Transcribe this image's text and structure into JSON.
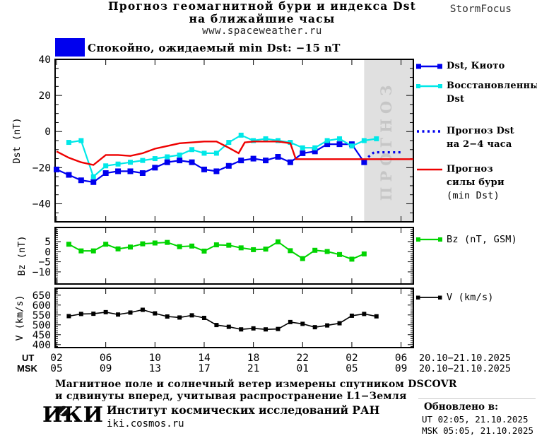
{
  "header": {
    "title_line1": "Прогноз геомагнитной бури и индекса Dst",
    "title_line2": "на ближайшие часы",
    "site": "www.spaceweather.ru",
    "brand": "StormFocus"
  },
  "status": {
    "label": "Спокойно, ожидаемый min Dst: −15 nT"
  },
  "watermark": "ПРОГНОЗ",
  "colors": {
    "kyoto_blue": "#0000ee",
    "restored_cyan": "#00e8e8",
    "forecast_blue": "#0000ee",
    "storm_red": "#ee0000",
    "bz_green": "#00d400",
    "v_black": "#000000",
    "forecast_region": "#e0e0e0",
    "watermark_gray": "#c6c6c6",
    "status_blue": "#0000ee"
  },
  "legend": {
    "dst_kyoto": "Dst, Киото",
    "restored_line1": "Восстановленный",
    "restored_line2": "Dst",
    "forecast_line1": "Прогноз Dst",
    "forecast_line2": "на 2−4 часа",
    "storm_line1": "Прогноз",
    "storm_line2": "силы бури",
    "storm_line3": "(min Dst)",
    "bz": "Bz (nT, GSM)",
    "v": "V (km/s)"
  },
  "xaxis": {
    "ut_label": "UT",
    "msk_label": "MSK",
    "ut_ticks": [
      "02",
      "06",
      "10",
      "14",
      "18",
      "22",
      "02",
      "06"
    ],
    "msk_ticks": [
      "05",
      "09",
      "13",
      "17",
      "21",
      "01",
      "05",
      "09"
    ],
    "ut_date": "20.10−21.10.2025",
    "msk_date": "20.10−21.10.2025"
  },
  "footer": {
    "note_line1": "Магнитное поле и солнечный ветер измерены спутником DSCOVR",
    "note_line2": "и сдвинуты вперед, учитывая распространение L1−Земля",
    "logo": "ИКИ",
    "institute": "Институт космических исследований РАН",
    "site": "iki.cosmos.ru",
    "updated_label": "Обновлено в:",
    "updated_ut": "UT  02:05, 21.10.2025",
    "updated_msk": "MSK 05:05, 21.10.2025"
  },
  "chart_data": [
    {
      "type": "line",
      "panel": "dst",
      "title": "Прогноз геомагнитной бури и индекса Dst",
      "ylabel": "Dst (nT)",
      "ylim": [
        -50,
        40
      ],
      "yticks": [
        40,
        20,
        0,
        -20,
        -40
      ],
      "ytick_labels": [
        "40",
        "20",
        "0",
        "−20",
        "−40"
      ],
      "yminor": 5,
      "xticks_hours": [
        2,
        6,
        10,
        14,
        18,
        22,
        26,
        30
      ],
      "xlim_hours": [
        1.9,
        31
      ],
      "forecast_region_hours": [
        27,
        31
      ],
      "grid": false,
      "legend_position": "right",
      "series": [
        {
          "name": "Dst, Киото",
          "color": "#0000ee",
          "marker": true,
          "msize": 8,
          "lw": 2.2,
          "start_hour": 2,
          "step": 1,
          "values": [
            -21,
            -24,
            -27,
            -28,
            -23,
            -22,
            -22,
            -23,
            -20,
            -17,
            -16,
            -17,
            -21,
            -22,
            -19,
            -16,
            -15,
            -16,
            -14,
            -17,
            -12,
            -11,
            -7,
            -7,
            -7,
            -17
          ]
        },
        {
          "name": "Восстановленный Dst",
          "color": "#00e8e8",
          "marker": true,
          "msize": 7,
          "lw": 2.2,
          "start_hour": 3,
          "step": 1,
          "values": [
            -6,
            -5,
            -25,
            -19,
            -18,
            -17,
            -16,
            -15,
            -14,
            -13,
            -10,
            -12,
            -12,
            -6,
            -2,
            -5,
            -4,
            -5,
            -6,
            -9,
            -9,
            -5,
            -4,
            -8,
            -5,
            -4
          ]
        },
        {
          "name": "Прогноз Dst на 2−4 часа",
          "color": "#0000ee",
          "marker": false,
          "lw": 3.2,
          "dash": "3 4.5",
          "points": [
            [
              27.0,
              -16
            ],
            [
              27.8,
              -11.5
            ],
            [
              30.2,
              -11.5
            ]
          ]
        },
        {
          "name": "Прогноз силы бури (min Dst)",
          "color": "#ee0000",
          "marker": false,
          "lw": 2.4,
          "points": [
            [
              2,
              -11
            ],
            [
              3,
              -14.5
            ],
            [
              4,
              -17
            ],
            [
              5,
              -18.5
            ],
            [
              6,
              -13
            ],
            [
              7,
              -13
            ],
            [
              8,
              -13.5
            ],
            [
              9,
              -12
            ],
            [
              10,
              -9.5
            ],
            [
              11,
              -8
            ],
            [
              12,
              -6.5
            ],
            [
              13,
              -6
            ],
            [
              14,
              -5.5
            ],
            [
              15,
              -5.5
            ],
            [
              16,
              -9
            ],
            [
              16.8,
              -12
            ],
            [
              17.3,
              -6
            ],
            [
              18,
              -5.5
            ],
            [
              20,
              -5.5
            ],
            [
              21,
              -6.5
            ],
            [
              21.45,
              -15.3
            ],
            [
              31,
              -15.3
            ]
          ]
        }
      ]
    },
    {
      "type": "line",
      "panel": "bz",
      "ylabel": "Bz (nT)",
      "ylim": [
        -16,
        12
      ],
      "yticks": [
        5,
        0,
        -5,
        -10
      ],
      "ytick_labels": [
        "5",
        "0",
        "−5",
        "−10"
      ],
      "yminor": 1,
      "xticks_hours": [
        2,
        6,
        10,
        14,
        18,
        22,
        26,
        30
      ],
      "xlim_hours": [
        1.9,
        31
      ],
      "grid": false,
      "series": [
        {
          "name": "Bz (nT, GSM)",
          "color": "#00d400",
          "marker": true,
          "msize": 7,
          "lw": 2,
          "start_hour": 3,
          "step": 1,
          "values": [
            3.7,
            0.4,
            0.4,
            3.7,
            1.4,
            2.3,
            3.9,
            4.3,
            4.6,
            2.5,
            2.8,
            0.3,
            3.4,
            3.2,
            1.9,
            1.0,
            1.3,
            4.9,
            0.5,
            -3.4,
            0.7,
            0.1,
            -1.4,
            -3.7,
            -1.1
          ]
        }
      ]
    },
    {
      "type": "line",
      "panel": "v",
      "ylabel": "V (km/s)",
      "ylim": [
        385,
        685
      ],
      "yticks": [
        650,
        600,
        550,
        500,
        450,
        400
      ],
      "ytick_labels": [
        "650",
        "600",
        "550",
        "500",
        "450",
        "400"
      ],
      "yminor": 10,
      "xticks_hours": [
        2,
        6,
        10,
        14,
        18,
        22,
        26,
        30
      ],
      "xlim_hours": [
        1.9,
        31
      ],
      "grid": false,
      "series": [
        {
          "name": "V (km/s)",
          "color": "#000000",
          "marker": true,
          "msize": 6,
          "lw": 1.6,
          "start_hour": 3,
          "step": 1,
          "values": [
            544,
            555,
            556,
            564,
            552,
            562,
            576,
            558,
            542,
            537,
            548,
            535,
            499,
            490,
            477,
            482,
            477,
            479,
            514,
            505,
            488,
            497,
            508,
            546,
            555,
            543
          ]
        }
      ]
    }
  ]
}
